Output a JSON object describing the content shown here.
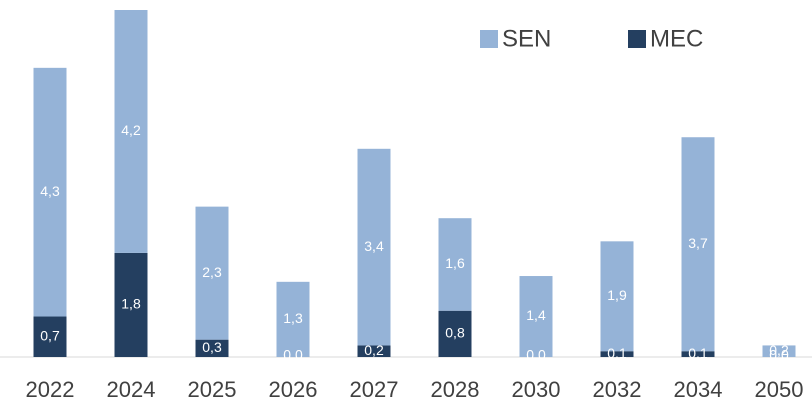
{
  "chart_data": {
    "type": "bar",
    "stacked": true,
    "categories": [
      "2022",
      "2024",
      "2025",
      "2026",
      "2027",
      "2028",
      "2030",
      "2032",
      "2034",
      "2050"
    ],
    "series": [
      {
        "name": "SEN",
        "color": "#95b3d7",
        "values": [
          4.3,
          4.2,
          2.3,
          1.3,
          3.4,
          1.6,
          1.4,
          1.9,
          3.7,
          0.2
        ],
        "value_labels": [
          "4,3",
          "4,2",
          "2,3",
          "1,3",
          "3,4",
          "1,6",
          "1,4",
          "1,9",
          "3,7",
          "0,2"
        ]
      },
      {
        "name": "MEC",
        "color": "#243f60",
        "values": [
          0.7,
          1.8,
          0.3,
          0.0,
          0.2,
          0.8,
          0.0,
          0.1,
          0.1,
          0.0
        ],
        "value_labels": [
          "0,7",
          "1,8",
          "0,3",
          "0,0",
          "0,2",
          "0,8",
          "0,0",
          "0,1",
          "0,1",
          "0,0"
        ]
      }
    ],
    "legend": "top-right"
  }
}
